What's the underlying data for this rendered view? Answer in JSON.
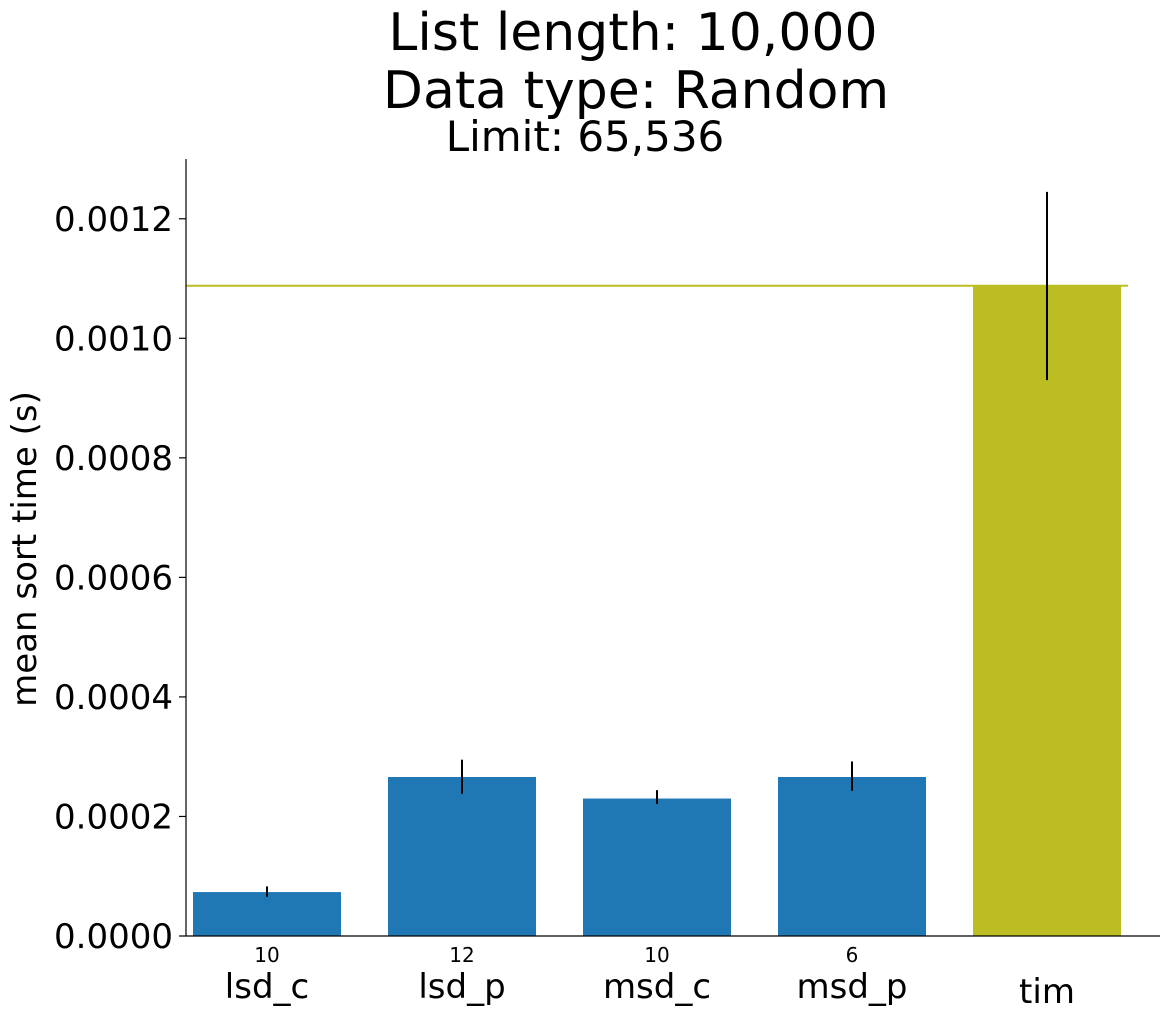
{
  "chart_data": {
    "type": "bar",
    "title_lines": [
      "List length: 10,000",
      "Data type: Random"
    ],
    "subtitle": "Limit: 65,536",
    "xlabel": "",
    "ylabel": "mean sort time (s)",
    "ylim": [
      0,
      0.0013
    ],
    "yticks": [
      "0.0000",
      "0.0002",
      "0.0004",
      "0.0006",
      "0.0008",
      "0.0010",
      "0.0012"
    ],
    "ytick_values": [
      0,
      0.0002,
      0.0004,
      0.0006,
      0.0008,
      0.001,
      0.0012
    ],
    "categories": [
      "lsd_c",
      "lsd_p",
      "msd_c",
      "msd_p",
      "tim"
    ],
    "values": [
      7.35e-05,
      0.000266,
      0.00023,
      0.000266,
      0.001088
    ],
    "error_low": [
      6.55e-05,
      0.000238,
      0.000221,
      0.000243,
      0.00093
    ],
    "error_high": [
      8.3e-05,
      0.000295,
      0.000244,
      0.000292,
      0.001245
    ],
    "bar_annotations": [
      "10",
      "12",
      "10",
      "6",
      ""
    ],
    "bar_colors": [
      "#1f77b4",
      "#1f77b4",
      "#1f77b4",
      "#1f77b4",
      "#bcbd22"
    ],
    "reference_line": {
      "value": 0.001088,
      "color": "#bcbd22"
    },
    "grid": false,
    "legend": "none"
  }
}
